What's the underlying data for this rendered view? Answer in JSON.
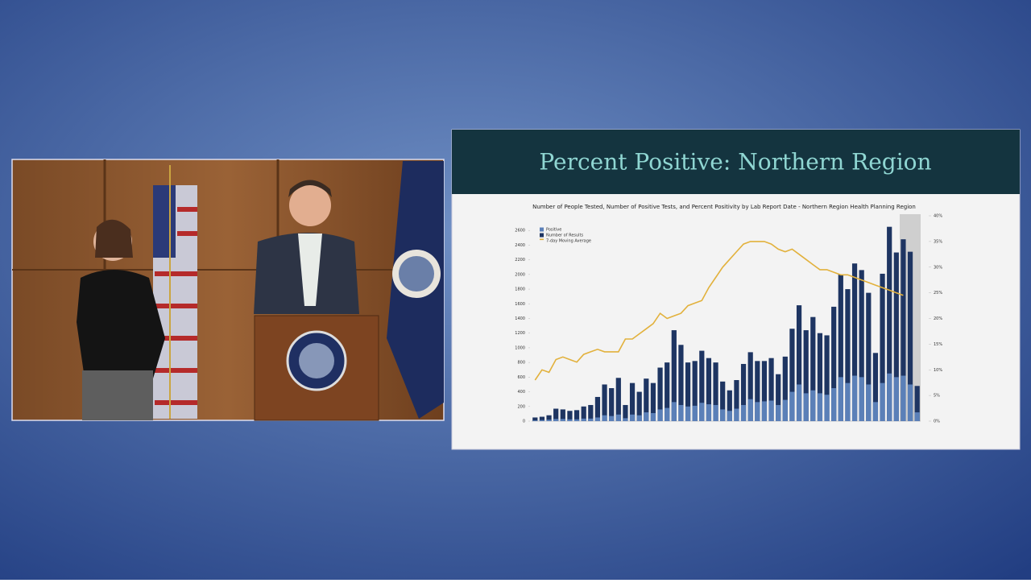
{
  "slide": {
    "title": "Percent Positive: Northern Region"
  },
  "chart_data": {
    "type": "bar",
    "title": "Number of People Tested, Number of Positive Tests, and Percent Positivity by Lab Report Date - Northern Region Health Planning Region",
    "categories": [
      null,
      null,
      null,
      null,
      null,
      null,
      null,
      null,
      null,
      null,
      null,
      null,
      null,
      null,
      null,
      null,
      null,
      null,
      null,
      null,
      null,
      null,
      null,
      null,
      null,
      null,
      null,
      null,
      null,
      null,
      null,
      null,
      null,
      null,
      null,
      null,
      null,
      null,
      null,
      null,
      null,
      null,
      null,
      null,
      null,
      null,
      null,
      null,
      null,
      null,
      null,
      null,
      null,
      null,
      null,
      null
    ],
    "series": [
      {
        "name": "Positive",
        "color": "#5b80b8",
        "values": [
          10,
          15,
          20,
          30,
          30,
          25,
          25,
          35,
          35,
          50,
          80,
          70,
          90,
          40,
          90,
          80,
          120,
          110,
          160,
          180,
          260,
          220,
          200,
          210,
          250,
          230,
          220,
          160,
          140,
          170,
          220,
          300,
          260,
          270,
          280,
          220,
          290,
          400,
          500,
          380,
          420,
          380,
          360,
          450,
          600,
          520,
          620,
          600,
          500,
          260,
          520,
          650,
          600,
          620,
          500,
          120
        ]
      },
      {
        "name": "Number of Results",
        "color": "#1e3562",
        "values": [
          50,
          60,
          80,
          170,
          160,
          140,
          150,
          200,
          220,
          330,
          500,
          450,
          590,
          220,
          520,
          400,
          580,
          520,
          730,
          800,
          1240,
          1040,
          800,
          820,
          960,
          860,
          800,
          540,
          420,
          560,
          780,
          940,
          820,
          820,
          860,
          640,
          880,
          1260,
          1580,
          1240,
          1420,
          1200,
          1170,
          1560,
          2000,
          1800,
          2150,
          2060,
          1750,
          930,
          2010,
          2650,
          2300,
          2480,
          2310,
          480
        ]
      },
      {
        "name": "7-day Moving Average",
        "color": "#e2b13c",
        "type": "line",
        "axis": "y2",
        "values": [
          8,
          10,
          9.5,
          12,
          12.5,
          12,
          11.5,
          13,
          13.5,
          14,
          13.5,
          13.5,
          13.5,
          16,
          16,
          17,
          18,
          19,
          21,
          20,
          20.5,
          21,
          22.5,
          23,
          23.5,
          26,
          28,
          30,
          31.5,
          33,
          34.5,
          35,
          35,
          35,
          34.5,
          33.5,
          33,
          33.5,
          32.5,
          31.5,
          30.5,
          29.5,
          29.5,
          29,
          28.5,
          28.5,
          28,
          27.5,
          27,
          26.5,
          26,
          25.5,
          25,
          24.5,
          null,
          null
        ]
      }
    ],
    "ylim": [
      0,
      2800
    ],
    "yticks": [
      0,
      200,
      400,
      600,
      800,
      {
        "value": 1000,
        "label": "1000"
      },
      1200,
      1400,
      1600,
      1800,
      2000,
      2200,
      2400,
      2600
    ],
    "y2lim": [
      0,
      40
    ],
    "y2ticks": [
      {
        "value": 0,
        "label": "0%"
      },
      {
        "value": 5,
        "label": "5%"
      },
      {
        "value": 10,
        "label": "10%"
      },
      {
        "value": 15,
        "label": "15%"
      },
      {
        "value": 20,
        "label": "20%"
      },
      {
        "value": 25,
        "label": "25%"
      },
      {
        "value": 30,
        "label": "30%"
      },
      {
        "value": 35,
        "label": "35%"
      },
      {
        "value": 40,
        "label": "40%"
      }
    ],
    "legend": "top-left"
  }
}
